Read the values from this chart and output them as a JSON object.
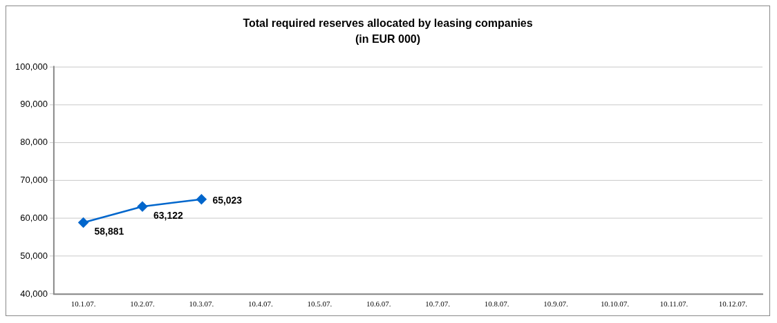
{
  "chart_data": {
    "type": "line",
    "title": "Total required reserves allocated by leasing companies",
    "subtitle": "(in EUR 000)",
    "categories": [
      "10.1.07.",
      "10.2.07.",
      "10.3.07.",
      "10.4.07.",
      "10.5.07.",
      "10.6.07.",
      "10.7.07.",
      "10.8.07.",
      "10.9.07.",
      "10.10.07.",
      "10.11.07.",
      "10.12.07."
    ],
    "series": [
      {
        "color": "#0066cc",
        "values": [
          58881,
          63122,
          65023,
          null,
          null,
          null,
          null,
          null,
          null,
          null,
          null,
          null
        ],
        "value_labels": [
          "58,881",
          "63,122",
          "65,023",
          null,
          null,
          null,
          null,
          null,
          null,
          null,
          null,
          null
        ]
      }
    ],
    "ylim": [
      40000,
      100000
    ],
    "yticks": [
      {
        "value": 40000,
        "label": "40,000"
      },
      {
        "value": 50000,
        "label": "50,000"
      },
      {
        "value": 60000,
        "label": "60,000"
      },
      {
        "value": 70000,
        "label": "70,000"
      },
      {
        "value": 80000,
        "label": "80,000"
      },
      {
        "value": 90000,
        "label": "90,000"
      },
      {
        "value": 100000,
        "label": "100,000"
      }
    ],
    "grid": "y",
    "legend": false,
    "marker": "diamond",
    "line_style": "solid"
  }
}
